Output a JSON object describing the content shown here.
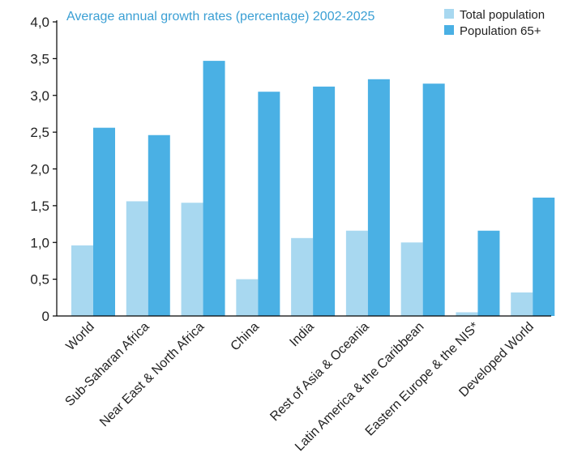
{
  "chart_data": {
    "type": "bar",
    "title": "Average annual growth rates (percentage) 2002-2025",
    "xlabel": "",
    "ylabel": "",
    "ylim": [
      0,
      4
    ],
    "yticks": [
      "0",
      "0,5",
      "1,0",
      "1,5",
      "2,0",
      "2,5",
      "3,0",
      "3,5",
      "4,0"
    ],
    "grid": false,
    "legend_position": "top-right",
    "categories": [
      "World",
      "Sub-Saharan Africa",
      "Near East & North Africa",
      "China",
      "India",
      "Rest of Asia & Oceania",
      "Latin America & the Caribbean",
      "Eastern Europe & the NIS*",
      "Developed World"
    ],
    "series": [
      {
        "name": "Total population",
        "color": "#a8d8f0",
        "values": [
          0.96,
          1.56,
          1.54,
          0.5,
          1.06,
          1.16,
          1.0,
          0.05,
          0.32
        ]
      },
      {
        "name": "Population 65+",
        "color": "#4ab0e4",
        "values": [
          2.56,
          2.46,
          3.47,
          3.05,
          3.12,
          3.22,
          3.16,
          1.16,
          1.61
        ]
      }
    ],
    "title_color": "#3a9fd4"
  }
}
